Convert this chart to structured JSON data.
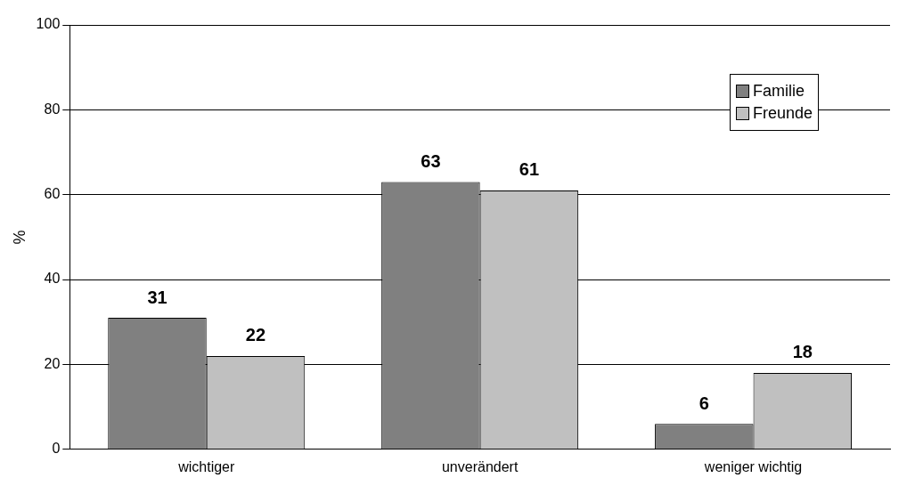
{
  "chart_data": {
    "type": "bar",
    "ylabel": "%",
    "categories": [
      "wichtiger",
      "unverändert",
      "weniger wichtig"
    ],
    "series": [
      {
        "name": "Familie",
        "color": "#808080",
        "values": [
          31,
          63,
          6
        ]
      },
      {
        "name": "Freunde",
        "color": "#c0c0c0",
        "values": [
          22,
          61,
          18
        ]
      }
    ],
    "ylim": [
      0,
      100
    ],
    "yticks": [
      0,
      20,
      40,
      60,
      80,
      100
    ],
    "grid": "y",
    "legend": "top right",
    "data_labels": true
  }
}
